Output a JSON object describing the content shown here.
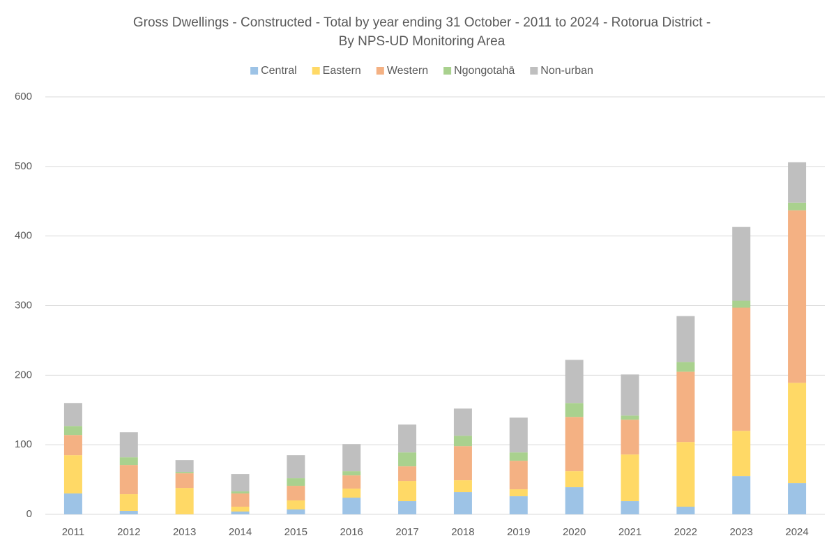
{
  "chart_data": {
    "type": "stacked_bar",
    "title": [
      "Gross Dwellings - Constructed - Total by year ending 31 October - 2011 to 2024 - Rotorua District -",
      "By NPS-UD Monitoring Area"
    ],
    "categories": [
      "2011",
      "2012",
      "2013",
      "2014",
      "2015",
      "2016",
      "2017",
      "2018",
      "2019",
      "2020",
      "2021",
      "2022",
      "2023",
      "2024"
    ],
    "series": [
      {
        "name": "Central",
        "color": "#9dc3e6",
        "values": [
          30,
          5,
          0,
          4,
          7,
          24,
          19,
          32,
          26,
          39,
          19,
          11,
          55,
          45
        ]
      },
      {
        "name": "Eastern",
        "color": "#ffd966",
        "values": [
          55,
          24,
          38,
          7,
          13,
          13,
          29,
          17,
          10,
          23,
          67,
          93,
          65,
          144
        ]
      },
      {
        "name": "Western",
        "color": "#f4b183",
        "values": [
          29,
          42,
          21,
          19,
          21,
          19,
          21,
          49,
          41,
          78,
          50,
          101,
          177,
          248
        ]
      },
      {
        "name": "Ngongotahā",
        "color": "#a9d18e",
        "values": [
          13,
          11,
          2,
          3,
          11,
          6,
          20,
          15,
          12,
          20,
          6,
          14,
          10,
          11
        ]
      },
      {
        "name": "Non-urban",
        "color": "#bfbfbf",
        "values": [
          33,
          36,
          17,
          25,
          33,
          39,
          40,
          39,
          50,
          62,
          59,
          66,
          106,
          58
        ]
      }
    ],
    "ylim": [
      0,
      600
    ],
    "yticks": [
      0,
      100,
      200,
      300,
      400,
      500,
      600
    ],
    "grid": true,
    "legend": "top"
  }
}
